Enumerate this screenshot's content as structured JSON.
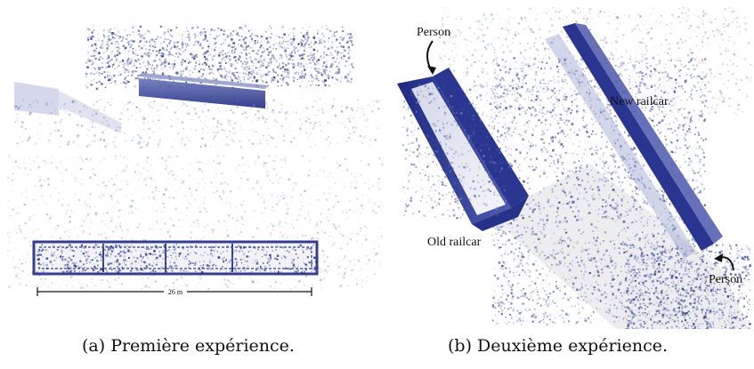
{
  "captions": {
    "a": "(a) Première expérience.",
    "b": "(b) Deuxième expérience."
  },
  "panel_a": {
    "scale_label": "26 m"
  },
  "panel_b": {
    "label_person_top": "Person",
    "label_new_railcar": "New railcar",
    "label_old_railcar": "Old railcar",
    "label_person_bottom": "Person"
  },
  "colors": {
    "point_dark": "#1e2a80",
    "point_mid": "#4a5aa8",
    "point_light": "#9aa3cf",
    "ground": "#e4e4e8",
    "text": "#111111"
  }
}
